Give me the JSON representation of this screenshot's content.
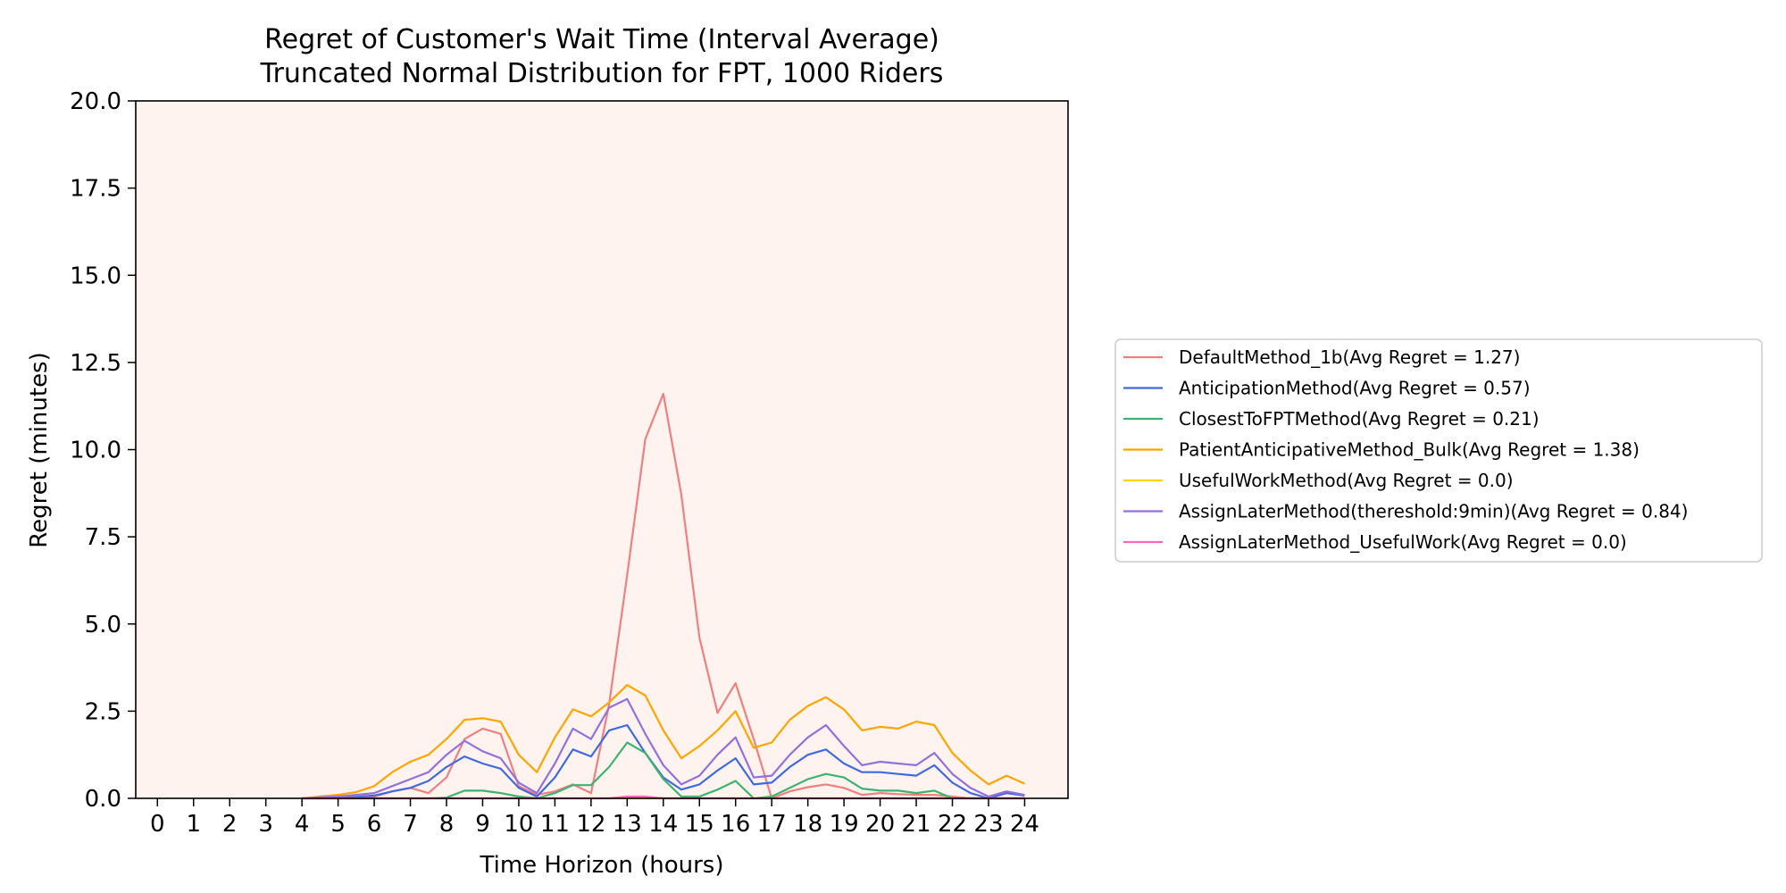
{
  "chart_data": {
    "type": "line",
    "title": "Regret of Customer's Wait Time (Interval Average)",
    "subtitle": "Truncated Normal Distribution for FPT, 1000 Riders",
    "xlabel": "Time Horizon (hours)",
    "ylabel": "Regret (minutes)",
    "xlim": [
      -0.6,
      25.2
    ],
    "ylim": [
      0,
      20
    ],
    "xticks": [
      0,
      1,
      2,
      3,
      4,
      5,
      6,
      7,
      8,
      9,
      10,
      11,
      12,
      13,
      14,
      15,
      16,
      17,
      18,
      19,
      20,
      21,
      22,
      23,
      24
    ],
    "yticks": [
      0.0,
      2.5,
      5.0,
      7.5,
      10.0,
      12.5,
      15.0,
      17.5,
      20.0
    ],
    "ytick_labels": [
      "0.0",
      "2.5",
      "5.0",
      "7.5",
      "10.0",
      "12.5",
      "15.0",
      "17.5",
      "20.0"
    ],
    "grid": false,
    "legend_position": "outside-right",
    "plot_background": "#fef3ee",
    "x": [
      4,
      4.5,
      5,
      5.5,
      6,
      6.5,
      7,
      7.5,
      8,
      8.5,
      9,
      9.5,
      10,
      10.5,
      11,
      11.5,
      12,
      12.5,
      13,
      13.5,
      14,
      14.5,
      15,
      15.5,
      16,
      16.5,
      17,
      17.5,
      18,
      18.5,
      19,
      19.5,
      20,
      20.5,
      21,
      21.5,
      22,
      22.5,
      23,
      23.5,
      24
    ],
    "series": [
      {
        "name": "DefaultMethod_1b(Avg Regret = 1.27)",
        "color": "#f08080",
        "values": [
          0,
          0,
          0,
          0,
          0.05,
          0.2,
          0.3,
          0.15,
          0.6,
          1.7,
          2.0,
          1.85,
          0.35,
          0.1,
          0.2,
          0.4,
          0.15,
          2.7,
          6.4,
          10.3,
          11.6,
          8.7,
          4.6,
          2.45,
          3.3,
          1.7,
          0,
          0.2,
          0.32,
          0.4,
          0.3,
          0.1,
          0.15,
          0.12,
          0.1,
          0.1,
          0.05,
          0,
          0,
          0,
          0
        ]
      },
      {
        "name": "AnticipationMethod(Avg Regret = 0.57)",
        "color": "#4169e1",
        "values": [
          0,
          0,
          0.02,
          0.04,
          0.08,
          0.2,
          0.3,
          0.5,
          0.9,
          1.2,
          1.0,
          0.85,
          0.3,
          0.05,
          0.6,
          1.4,
          1.2,
          1.95,
          2.1,
          1.3,
          0.6,
          0.25,
          0.4,
          0.8,
          1.15,
          0.4,
          0.45,
          0.9,
          1.25,
          1.4,
          1.0,
          0.75,
          0.75,
          0.7,
          0.65,
          0.95,
          0.45,
          0.15,
          0,
          0.15,
          0.08
        ]
      },
      {
        "name": "ClosestToFPTMethod(Avg Regret = 0.21)",
        "color": "#3cb371",
        "values": [
          0,
          0,
          0,
          0,
          0,
          0,
          0,
          0,
          0.02,
          0.22,
          0.22,
          0.15,
          0.05,
          0,
          0.15,
          0.38,
          0.38,
          0.9,
          1.6,
          1.3,
          0.55,
          0.05,
          0.05,
          0.25,
          0.5,
          0,
          0.05,
          0.3,
          0.55,
          0.7,
          0.6,
          0.28,
          0.22,
          0.22,
          0.15,
          0.22,
          0,
          0,
          0,
          0,
          0
        ]
      },
      {
        "name": "PatientAnticipativeMethod_Bulk(Avg Regret = 1.38)",
        "color": "#ffa500",
        "values": [
          0,
          0.05,
          0.1,
          0.18,
          0.35,
          0.75,
          1.05,
          1.25,
          1.7,
          2.25,
          2.3,
          2.2,
          1.25,
          0.75,
          1.75,
          2.55,
          2.35,
          2.75,
          3.25,
          2.95,
          1.95,
          1.15,
          1.5,
          1.95,
          2.5,
          1.45,
          1.6,
          2.25,
          2.65,
          2.9,
          2.55,
          1.95,
          2.05,
          2.0,
          2.2,
          2.1,
          1.3,
          0.8,
          0.4,
          0.65,
          0.42
        ]
      },
      {
        "name": "UsefulWorkMethod(Avg Regret = 0.0)",
        "color": "#ffd700",
        "values": [
          0,
          0,
          0,
          0,
          0,
          0,
          0,
          0,
          0,
          0,
          0,
          0,
          0,
          0,
          0,
          0,
          0,
          0,
          0,
          0,
          0,
          0,
          0,
          0,
          0,
          0,
          0,
          0,
          0,
          0,
          0,
          0,
          0,
          0,
          0,
          0,
          0,
          0,
          0,
          0,
          0
        ]
      },
      {
        "name": "AssignLaterMethod(thereshold:9min)(Avg Regret = 0.84)",
        "color": "#9370db",
        "values": [
          0,
          0.03,
          0.05,
          0.1,
          0.15,
          0.35,
          0.55,
          0.75,
          1.25,
          1.65,
          1.35,
          1.15,
          0.45,
          0.15,
          1.0,
          2.0,
          1.7,
          2.6,
          2.85,
          1.85,
          0.95,
          0.4,
          0.65,
          1.25,
          1.75,
          0.6,
          0.65,
          1.25,
          1.75,
          2.1,
          1.5,
          0.95,
          1.05,
          1.0,
          0.95,
          1.3,
          0.7,
          0.3,
          0.05,
          0.2,
          0.1
        ]
      },
      {
        "name": "AssignLaterMethod_UsefulWork(Avg Regret = 0.0)",
        "color": "#ff69b4",
        "values": [
          0,
          0,
          0,
          0,
          0,
          0,
          0,
          0,
          0,
          0,
          0,
          0,
          0,
          0,
          0,
          0,
          0,
          0,
          0.05,
          0.05,
          0,
          0,
          0,
          0,
          0,
          0,
          0,
          0,
          0,
          0,
          0,
          0,
          0,
          0,
          0,
          0,
          0,
          0,
          0,
          0,
          0
        ]
      }
    ]
  }
}
